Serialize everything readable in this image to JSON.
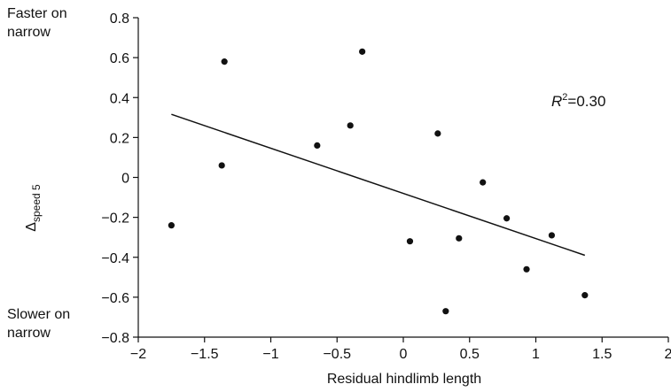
{
  "chart_data": {
    "type": "scatter",
    "xlabel": "Residual hindlimb length",
    "ylabel": "Δ",
    "ylabel_subscript": "speed 5",
    "xlim": [
      -2,
      2
    ],
    "ylim": [
      -0.8,
      0.8
    ],
    "x_ticks": [
      -2,
      -1.5,
      -1,
      -0.5,
      0,
      0.5,
      1,
      1.5,
      2
    ],
    "y_ticks": [
      -0.8,
      -0.6,
      -0.4,
      -0.2,
      0,
      0.2,
      0.4,
      0.6,
      0.8
    ],
    "x_tick_labels": [
      "−2",
      "−1.5",
      "−1",
      "−0.5",
      "0",
      "0.5",
      "1",
      "1.5",
      "2"
    ],
    "y_tick_labels": [
      "−0.8",
      "−0.6",
      "−0.4",
      "−0.2",
      "0",
      "0.2",
      "0.4",
      "0.6",
      "0.8"
    ],
    "grid": false,
    "series": [
      {
        "x": [
          -1.75,
          -1.37,
          -1.35,
          -0.65,
          -0.4,
          -0.31,
          0.05,
          0.26,
          0.32,
          0.42,
          0.6,
          0.78,
          0.93,
          1.12,
          1.37
        ],
        "y": [
          -0.24,
          0.06,
          0.58,
          0.16,
          0.26,
          0.63,
          -0.32,
          0.22,
          -0.67,
          -0.305,
          -0.025,
          -0.205,
          -0.46,
          -0.29,
          -0.59
        ]
      }
    ],
    "fit_line": {
      "x": [
        -1.75,
        1.37
      ],
      "y": [
        0.316,
        -0.39
      ]
    },
    "annotation": {
      "r_label": "R",
      "r_sup": "2",
      "r_value": "=0.30"
    },
    "top_label": [
      "Faster on",
      "narrow"
    ],
    "bottom_label": [
      "Slower on",
      "narrow"
    ]
  }
}
